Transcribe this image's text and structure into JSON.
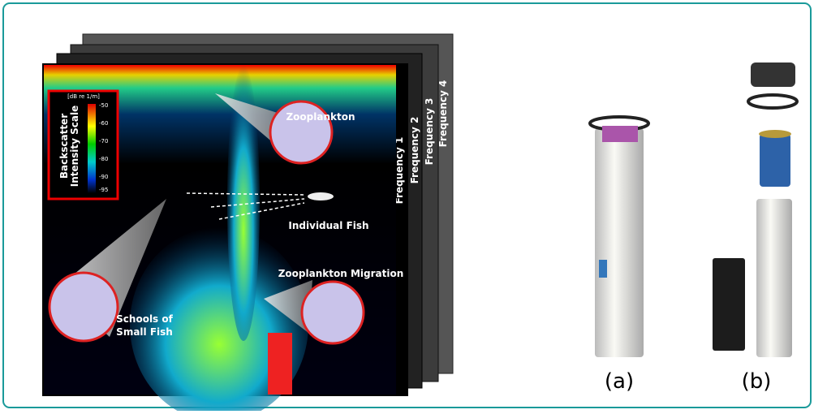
{
  "echogram": {
    "frequencies": [
      "Frequency 1",
      "Frequency 2",
      "Frequency 3",
      "Frequency 4"
    ],
    "scale": {
      "unit": "[dB re 1/m]",
      "title": [
        "Backscatter",
        "Intensity Scale"
      ],
      "ticks": [
        "-50",
        "-60",
        "-70",
        "-80",
        "-90",
        "-95"
      ]
    },
    "annotations": {
      "zooplankton": "Zooplankton",
      "fish": "Individual Fish",
      "migration": "Zooplankton Migration",
      "schools": [
        "Schools of",
        "Small Fish"
      ]
    }
  },
  "panels": {
    "a": "(a)",
    "b": "(b)"
  }
}
